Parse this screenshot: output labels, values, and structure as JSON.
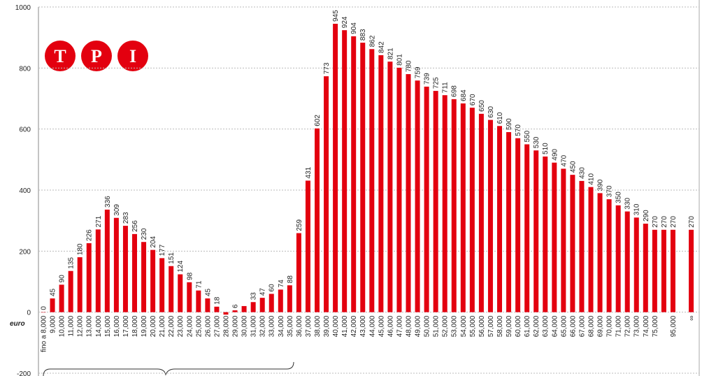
{
  "chart_data": {
    "type": "bar",
    "axis_label": "euro",
    "logo": [
      "T",
      "P",
      "I"
    ],
    "categories": [
      "fino a 8,000",
      "9,000",
      "10,000",
      "11,000",
      "12,000",
      "13,000",
      "14,000",
      "15,000",
      "16,000",
      "17,000",
      "18,000",
      "19,000",
      "20,000",
      "21,000",
      "22,000",
      "23,000",
      "24,000",
      "25,000",
      "26,000",
      "27,000",
      "28,000",
      "29,000",
      "30,000",
      "31,000",
      "32,000",
      "33,000",
      "34,000",
      "35,000",
      "36,000",
      "37,000",
      "38,000",
      "39,000",
      "40,000",
      "41,000",
      "42,000",
      "43,000",
      "44,000",
      "45,000",
      "46,000",
      "47,000",
      "48,000",
      "49,000",
      "50,000",
      "51,000",
      "52,000",
      "53,000",
      "54,000",
      "55,000",
      "56,000",
      "57,000",
      "58,000",
      "59,000",
      "60,000",
      "61,000",
      "62,000",
      "63,000",
      "64,000",
      "65,000",
      "66,000",
      "67,000",
      "68,000",
      "69,000",
      "70,000",
      "71,000",
      "72,000",
      "73,000",
      "74,000",
      "75,000",
      null,
      "95,000",
      null,
      "∞"
    ],
    "values": [
      0,
      45,
      90,
      135,
      180,
      226,
      271,
      336,
      309,
      283,
      256,
      230,
      204,
      177,
      151,
      124,
      98,
      71,
      45,
      18,
      -8,
      6,
      20,
      33,
      47,
      60,
      74,
      88,
      259,
      431,
      602,
      773,
      945,
      924,
      904,
      883,
      862,
      842,
      821,
      801,
      780,
      759,
      739,
      725,
      711,
      698,
      684,
      670,
      650,
      630,
      610,
      590,
      570,
      550,
      530,
      510,
      490,
      470,
      450,
      430,
      410,
      390,
      370,
      350,
      330,
      310,
      290,
      270,
      270,
      270,
      null,
      270
    ],
    "value_labels": [
      "0",
      "45",
      "90",
      "135",
      "180",
      "226",
      "271",
      "336",
      "309",
      "283",
      "256",
      "230",
      "204",
      "177",
      "151",
      "124",
      "98",
      "71",
      "45",
      "18",
      null,
      "6",
      null,
      "33",
      "47",
      "60",
      "74",
      "88",
      "259",
      "431",
      "602",
      "773",
      "945",
      "924",
      "904",
      "883",
      "862",
      "842",
      "821",
      "801",
      "780",
      "759",
      "739",
      "725",
      "711",
      "698",
      "684",
      "670",
      "650",
      "630",
      "610",
      "590",
      "570",
      "550",
      "530",
      "510",
      "490",
      "470",
      "450",
      "430",
      "410",
      "390",
      "370",
      "350",
      "330",
      "310",
      "290",
      "270",
      "270",
      "270",
      null,
      "270"
    ],
    "color": "#e3000f",
    "ylim": [
      -200,
      1000
    ],
    "yticks": [
      -200,
      0,
      200,
      400,
      600,
      800,
      1000
    ],
    "grid": true
  }
}
